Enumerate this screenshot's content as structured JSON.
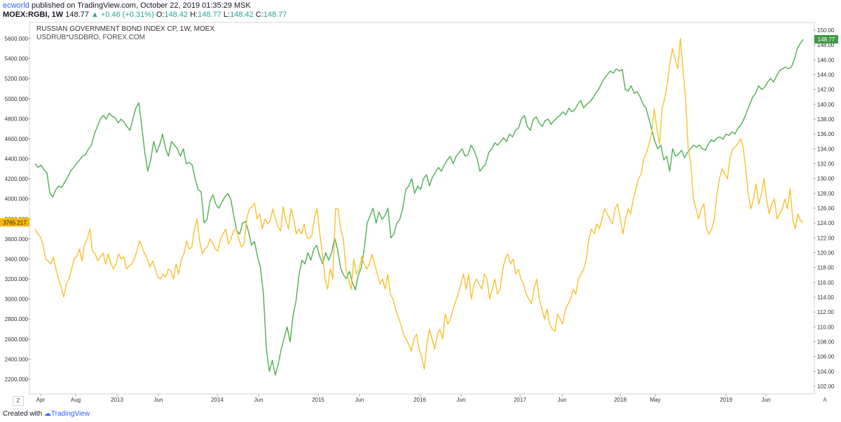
{
  "header": {
    "user": "ecworld",
    "published_text": "published on TradingView.com, October 22, 2019 01:35:29 MSK",
    "symbol": "MOEX:RGBI, 1W",
    "last": "148.77",
    "change": "+0.46 (+0.31%)",
    "o_label": "O:",
    "o_val": "148.42",
    "h_label": "H:",
    "h_val": "148.77",
    "l_label": "L:",
    "l_val": "148.42",
    "c_label": "C:",
    "c_val": "148.77"
  },
  "legend": {
    "series1": "RUSSIAN GOVERNMENT BOND INDEX CP, 1W, MOEX",
    "series2": "USDRUB*USDBRO, FOREX.COM"
  },
  "footer": {
    "created_with": "Created with",
    "brand": "TradingView"
  },
  "buttons": {
    "z": "Z",
    "a": "A"
  },
  "colors": {
    "green": "#4caf50",
    "yellow": "#f9c02f",
    "green_label": "#3d9a45",
    "yellow_label": "#f5b800"
  },
  "chart_data": {
    "type": "line",
    "x_ticks": [
      "Apr",
      "Aug",
      "2013",
      "Jun",
      "2014",
      "Jun",
      "2015",
      "Jun",
      "2016",
      "Jun",
      "2017",
      "Jun",
      "2018",
      "May",
      "2019",
      "Jun"
    ],
    "left_axis": {
      "ticks": [
        "5600.000",
        "5400.000",
        "5200.000",
        "5000.000",
        "4800.000",
        "4600.000",
        "4400.000",
        "4200.000",
        "4000.000",
        "3800.000",
        "3600.000",
        "3400.000",
        "3200.000",
        "3000.000",
        "2800.000",
        "2600.000",
        "2400.000",
        "2200.000"
      ],
      "range": [
        2200,
        5600
      ]
    },
    "right_axis": {
      "ticks": [
        "150.00",
        "148.00",
        "146.00",
        "144.00",
        "142.00",
        "140.00",
        "138.00",
        "136.00",
        "134.00",
        "132.00",
        "130.00",
        "128.00",
        "126.00",
        "124.00",
        "122.00",
        "120.00",
        "118.00",
        "116.00",
        "114.00",
        "112.00",
        "110.00",
        "108.00",
        "106.00",
        "104.00",
        "102.00"
      ],
      "range": [
        102,
        150
      ]
    },
    "last_label_right": "148.77",
    "last_label_left": "3765.217",
    "series": [
      {
        "name": "RUSSIAN GOVERNMENT BOND INDEX CP, 1W, MOEX",
        "axis": "right",
        "color": "#4caf50",
        "values": [
          132.0,
          131.5,
          131.8,
          131.2,
          130.8,
          128.0,
          127.5,
          128.5,
          129.0,
          128.8,
          129.5,
          130.2,
          131.0,
          131.5,
          132.0,
          132.5,
          133.0,
          133.2,
          134.0,
          134.5,
          136.0,
          137.0,
          138.0,
          138.5,
          138.0,
          138.8,
          138.4,
          138.2,
          137.5,
          138.0,
          137.6,
          137.0,
          136.5,
          138.0,
          139.5,
          140.2,
          137.0,
          133.5,
          131.0,
          132.5,
          135.0,
          133.5,
          134.5,
          136.0,
          134.0,
          133.0,
          135.0,
          134.5,
          134.0,
          133.0,
          134.0,
          132.0,
          132.2,
          131.8,
          130.0,
          128.5,
          128.2,
          124.0,
          124.5,
          127.0,
          127.8,
          126.5,
          126.0,
          126.8,
          127.5,
          128.0,
          127.2,
          125.0,
          123.0,
          122.5,
          124.0,
          124.2,
          122.8,
          121.0,
          121.5,
          119.5,
          118.0,
          114.5,
          107.0,
          104.0,
          105.5,
          103.5,
          105.0,
          107.0,
          108.5,
          110.0,
          108.0,
          111.5,
          113.5,
          117.0,
          119.0,
          118.5,
          120.0,
          119.0,
          120.5,
          121.0,
          119.5,
          118.5,
          120.0,
          119.0,
          120.0,
          122.0,
          120.5,
          118.0,
          117.0,
          116.5,
          117.5,
          116.0,
          115.0,
          117.0,
          118.0,
          120.5,
          124.0,
          125.0,
          126.0,
          124.0,
          125.5,
          124.5,
          125.0,
          126.0,
          122.0,
          122.5,
          124.0,
          124.5,
          126.0,
          128.5,
          129.0,
          130.0,
          128.0,
          129.0,
          128.5,
          130.0,
          130.5,
          129.0,
          130.2,
          130.8,
          131.5,
          131.0,
          131.8,
          132.5,
          133.0,
          132.0,
          133.0,
          133.5,
          134.0,
          133.0,
          133.2,
          134.5,
          133.8,
          132.8,
          131.0,
          131.5,
          132.0,
          133.5,
          134.0,
          134.8,
          134.5,
          135.0,
          135.5,
          135.0,
          136.0,
          135.6,
          136.5,
          136.8,
          138.0,
          138.5,
          137.0,
          136.5,
          138.0,
          138.3,
          137.5,
          137.0,
          137.8,
          138.0,
          137.3,
          137.8,
          138.2,
          138.5,
          139.0,
          138.6,
          139.5,
          139.0,
          139.3,
          140.0,
          140.5,
          139.5,
          140.0,
          140.3,
          140.8,
          141.5,
          142.0,
          142.8,
          143.5,
          144.0,
          144.5,
          144.2,
          144.8,
          144.5,
          144.7,
          142.0,
          141.8,
          142.5,
          141.5,
          141.7,
          141.0,
          140.0,
          139.5,
          138.0,
          136.5,
          135.0,
          134.0,
          134.5,
          132.5,
          133.0,
          131.0,
          134.0,
          133.0,
          133.3,
          133.8,
          132.8,
          133.5,
          134.0,
          134.5,
          134.2,
          134.5,
          134.0,
          133.8,
          134.6,
          135.2,
          135.0,
          135.5,
          135.6,
          135.3,
          136.0,
          135.8,
          136.3,
          136.0,
          136.8,
          137.2,
          138.0,
          139.0,
          140.0,
          141.0,
          141.5,
          142.5,
          142.0,
          142.3,
          143.0,
          143.5,
          143.0,
          143.8,
          144.5,
          144.8,
          145.0,
          144.8,
          145.0,
          146.0,
          147.5,
          148.2,
          148.77
        ]
      },
      {
        "name": "USDRUB*USDBRO, FOREX.COM",
        "axis": "left",
        "color": "#f9c02f",
        "values": [
          3700,
          3650,
          3620,
          3550,
          3400,
          3380,
          3350,
          3420,
          3300,
          3200,
          3120,
          3020,
          3150,
          3200,
          3300,
          3400,
          3430,
          3500,
          3380,
          3550,
          3600,
          3700,
          3480,
          3450,
          3380,
          3420,
          3460,
          3350,
          3450,
          3360,
          3300,
          3350,
          3450,
          3400,
          3420,
          3300,
          3330,
          3350,
          3400,
          3480,
          3580,
          3520,
          3450,
          3400,
          3320,
          3380,
          3300,
          3220,
          3200,
          3250,
          3220,
          3300,
          3280,
          3200,
          3350,
          3250,
          3400,
          3450,
          3580,
          3500,
          3520,
          3700,
          3800,
          3580,
          3450,
          3500,
          3520,
          3600,
          3560,
          3500,
          3480,
          3600,
          3650,
          3700,
          3550,
          3600,
          3680,
          3700,
          3600,
          3520,
          3550,
          3800,
          3900,
          3920,
          3960,
          3800,
          3850,
          3700,
          3800,
          3750,
          3780,
          3900,
          3800,
          3720,
          3680,
          3920,
          3780,
          3700,
          3900,
          3800,
          3650,
          3700,
          3650,
          3750,
          3620,
          3600,
          3640,
          3820,
          3900,
          3650,
          3450,
          3200,
          3100,
          3300,
          3200,
          3900,
          3900,
          3700,
          3600,
          3300,
          3200,
          3100,
          3400,
          3250,
          3300,
          3420,
          3350,
          3300,
          3350,
          3450,
          3350,
          3250,
          3150,
          3200,
          3100,
          3250,
          3050,
          3000,
          2900,
          2820,
          2750,
          2650,
          2600,
          2550,
          2480,
          2600,
          2650,
          2500,
          2420,
          2300,
          2550,
          2700,
          2600,
          2500,
          2650,
          2700,
          2600,
          2850,
          2750,
          2800,
          2900,
          2980,
          3050,
          3150,
          3250,
          3100,
          3250,
          3000,
          3150,
          3200,
          3150,
          3100,
          3250,
          3200,
          3000,
          3100,
          3200,
          3050,
          3100,
          3300,
          3400,
          3450,
          3350,
          3400,
          3250,
          3300,
          3200,
          3150,
          3050,
          3000,
          2950,
          3100,
          3200,
          3000,
          2900,
          2800,
          2900,
          2750,
          2700,
          2680,
          2850,
          2800,
          2750,
          2900,
          2950,
          3000,
          3100,
          3050,
          3200,
          3250,
          3300,
          3400,
          3600,
          3700,
          3650,
          3750,
          3700,
          3800,
          3900,
          3850,
          3800,
          3750,
          3900,
          3950,
          3800,
          3650,
          3800,
          3900,
          3850,
          4000,
          4100,
          4200,
          4250,
          4400,
          4450,
          4550,
          4650,
          4900,
          4700,
          4550,
          4900,
          5000,
          5150,
          5350,
          5500,
          5400,
          5300,
          5600,
          5300,
          5000,
          4500,
          4350,
          4000,
          3900,
          3800,
          3900,
          3950,
          3700,
          3650,
          3700,
          3800,
          4050,
          4200,
          4300,
          4250,
          4200,
          4400,
          4500,
          4520,
          4550,
          4600,
          4520,
          4300,
          4050,
          3900,
          4000,
          4150,
          3950,
          4050,
          4200,
          4000,
          3850,
          3950,
          4000,
          3800,
          3850,
          3900,
          4000,
          3900,
          4100,
          3800,
          3700,
          3850,
          3780,
          3765.217
        ]
      }
    ]
  }
}
